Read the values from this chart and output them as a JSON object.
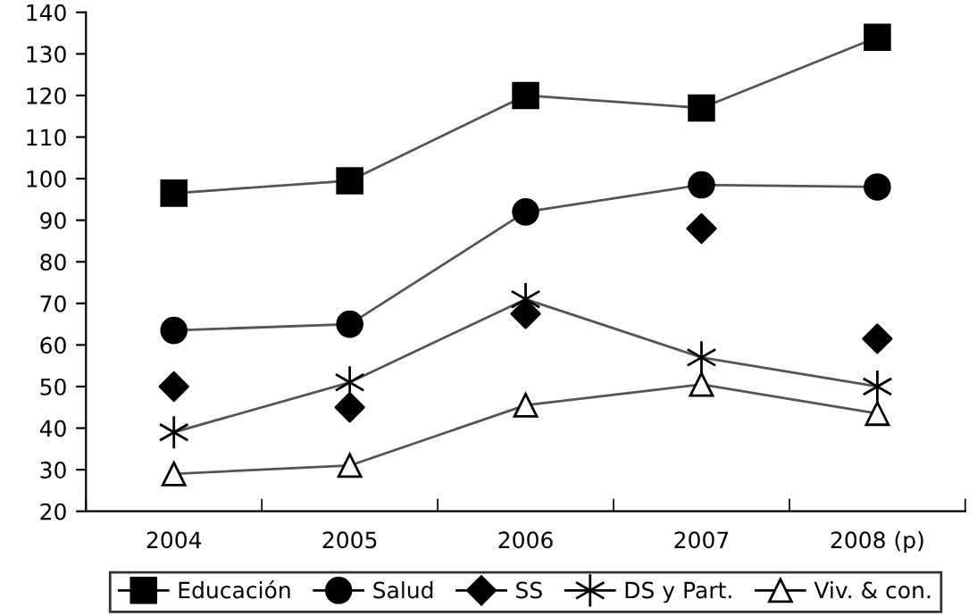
{
  "chart_data": {
    "type": "line",
    "categories": [
      "2004",
      "2005",
      "2006",
      "2007",
      "2008 (p)"
    ],
    "series": [
      {
        "name": "Educación",
        "color": "#000000",
        "marker": "square",
        "values": [
          96.5,
          99.5,
          120,
          117,
          134
        ]
      },
      {
        "name": "Salud",
        "color": "#000000",
        "marker": "circle",
        "values": [
          63.5,
          65,
          92,
          98.5,
          98
        ]
      },
      {
        "name": "SS",
        "color": "#000000",
        "marker": "diamond",
        "type": "scatter",
        "values": [
          50,
          45,
          67.5,
          88,
          61.5
        ]
      },
      {
        "name": "DS y Part.",
        "color": "#000000",
        "marker": "cross",
        "values": [
          39,
          51,
          71,
          57,
          50
        ]
      },
      {
        "name": "Viv. & con.",
        "color": "#000000",
        "marker": "triangle",
        "values": [
          29,
          31,
          45.5,
          50.5,
          43.5
        ]
      }
    ],
    "ylim": [
      20,
      140
    ],
    "yticks": [
      20,
      30,
      40,
      50,
      60,
      70,
      80,
      90,
      100,
      110,
      120,
      130,
      140
    ],
    "grid": false,
    "legend": "bottom",
    "line_style": "solid"
  }
}
